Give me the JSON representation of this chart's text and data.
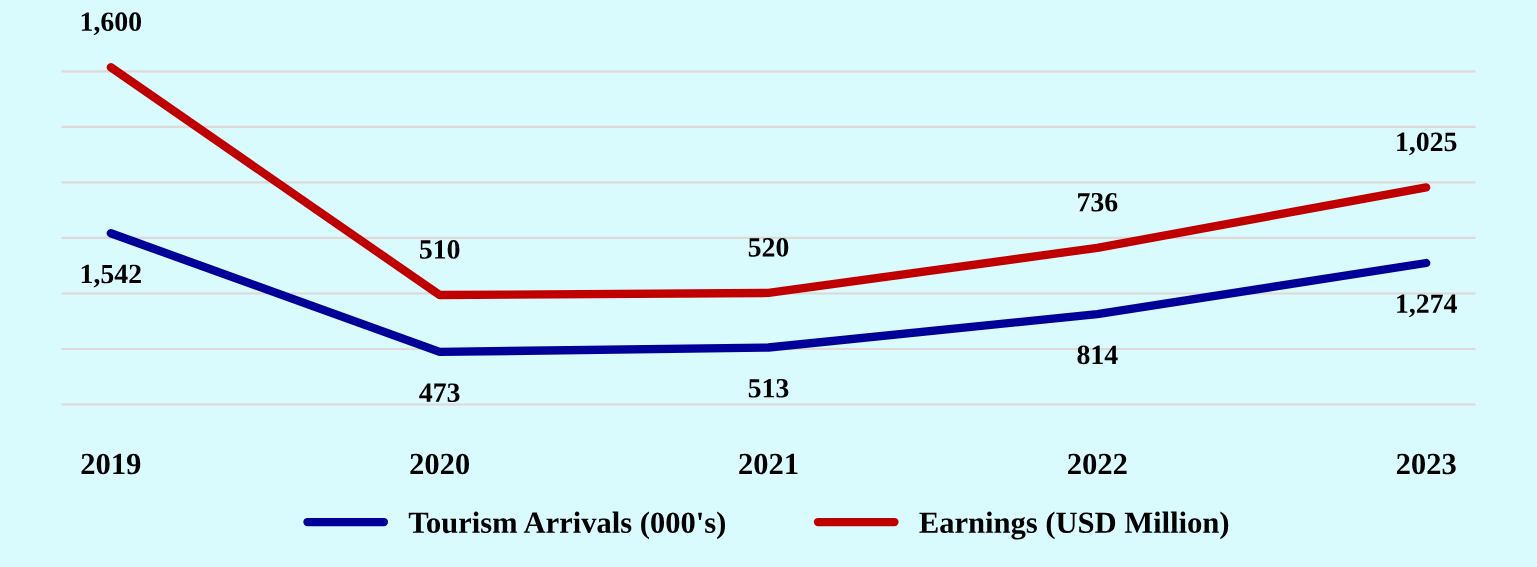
{
  "chart_data": {
    "type": "line",
    "categories": [
      "2019",
      "2020",
      "2021",
      "2022",
      "2023"
    ],
    "series": [
      {
        "name": "Tourism Arrivals (000's)",
        "color": "#000099",
        "values": [
          1542,
          473,
          513,
          814,
          1274
        ],
        "value_labels": [
          "1,542",
          "473",
          "513",
          "814",
          "1,274"
        ]
      },
      {
        "name": "Earnings (USD Million)",
        "color": "#c00000",
        "values": [
          1600,
          510,
          520,
          736,
          1025
        ],
        "value_labels": [
          "1,600",
          "510",
          "520",
          "736",
          "1,025"
        ],
        "axis": "y2"
      }
    ],
    "grid": "y",
    "legend": "bottom",
    "tick_labels": "x",
    "marker": "none",
    "line_style": "solid"
  }
}
